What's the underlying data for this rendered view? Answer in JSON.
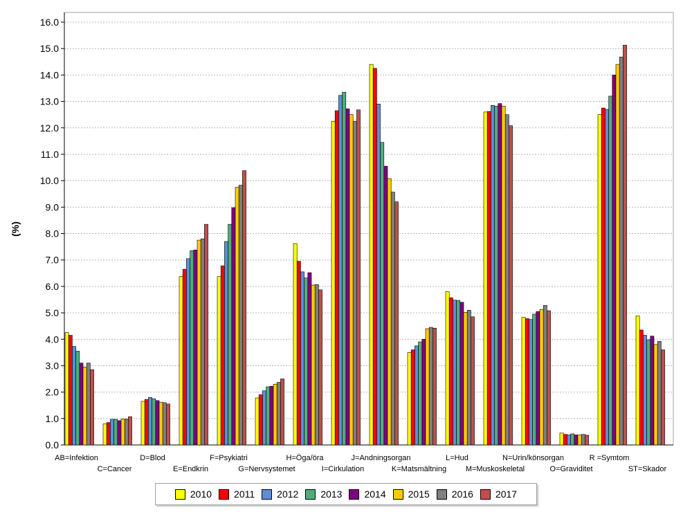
{
  "chart_data": {
    "type": "bar",
    "title": "",
    "xlabel": "",
    "ylabel": "(%)",
    "ylim": [
      0,
      16
    ],
    "yticks": [
      "0.0",
      "1.0",
      "2.0",
      "3.0",
      "4.0",
      "5.0",
      "6.0",
      "7.0",
      "8.0",
      "9.0",
      "10.0",
      "11.0",
      "12.0",
      "13.0",
      "14.0",
      "15.0",
      "16.0"
    ],
    "grid": true,
    "legend_position": "bottom",
    "categories": [
      "AB=Infektion",
      "C=Cancer",
      "D=Blod",
      "E=Endkrin",
      "F=Psykiatri",
      "G=Nervsystemet",
      "H=Öga/öra",
      "I=Cirkulation",
      "J=Andningsorgan",
      "K=Matsmältning",
      "L=Hud",
      "M=Muskoskeletal",
      "N=Urin/könsorgan",
      "O=Graviditet",
      "R =Symtom",
      "ST=Skador"
    ],
    "series": [
      {
        "name": "2010",
        "color": "#ffff00",
        "values": [
          4.25,
          0.8,
          1.65,
          6.37,
          6.37,
          1.78,
          7.62,
          12.25,
          14.4,
          3.5,
          5.8,
          12.6,
          4.83,
          0.45,
          12.5,
          4.88
        ]
      },
      {
        "name": "2011",
        "color": "#ff0000",
        "values": [
          4.15,
          0.85,
          1.72,
          6.65,
          6.78,
          1.9,
          6.95,
          12.65,
          14.25,
          3.6,
          5.57,
          12.62,
          4.78,
          0.4,
          12.75,
          4.35
        ]
      },
      {
        "name": "2012",
        "color": "#5b8fdc",
        "values": [
          3.73,
          0.97,
          1.8,
          7.05,
          7.7,
          2.05,
          6.55,
          13.23,
          12.9,
          3.75,
          5.48,
          12.85,
          4.75,
          0.38,
          12.7,
          4.15
        ]
      },
      {
        "name": "2013",
        "color": "#4caf79",
        "values": [
          3.55,
          0.97,
          1.75,
          7.35,
          8.35,
          2.2,
          6.32,
          13.35,
          11.45,
          3.9,
          5.47,
          12.82,
          4.95,
          0.42,
          13.2,
          3.98
        ]
      },
      {
        "name": "2014",
        "color": "#7f007f",
        "values": [
          3.1,
          0.92,
          1.68,
          7.38,
          8.98,
          2.22,
          6.52,
          12.72,
          10.55,
          4.0,
          5.4,
          12.92,
          5.05,
          0.38,
          14.0,
          4.12
        ]
      },
      {
        "name": "2015",
        "color": "#ffcc00",
        "values": [
          2.95,
          0.98,
          1.62,
          7.75,
          9.75,
          2.3,
          6.05,
          12.5,
          10.08,
          4.4,
          5.02,
          12.82,
          5.13,
          0.38,
          14.4,
          3.8
        ]
      },
      {
        "name": "2016",
        "color": "#7f7f7f",
        "values": [
          3.1,
          0.98,
          1.6,
          7.8,
          9.83,
          2.37,
          6.07,
          12.25,
          9.57,
          4.45,
          5.1,
          12.5,
          5.28,
          0.4,
          14.68,
          3.92
        ]
      },
      {
        "name": "2017",
        "color": "#c0504d",
        "values": [
          2.85,
          1.07,
          1.55,
          8.35,
          10.38,
          2.5,
          5.87,
          12.68,
          9.2,
          4.42,
          4.85,
          12.08,
          5.08,
          0.37,
          15.13,
          3.6
        ]
      }
    ]
  }
}
